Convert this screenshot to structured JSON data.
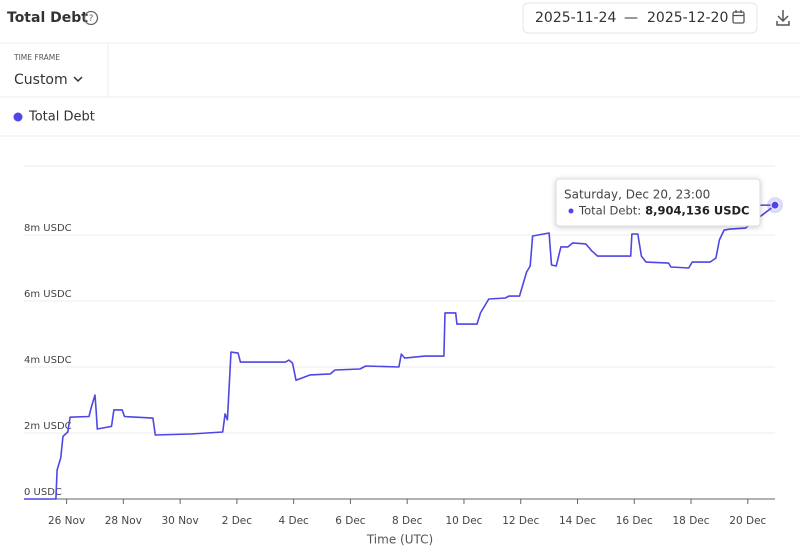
{
  "header": {
    "title": "Total Debt",
    "start_date": "2025-11-24",
    "separator": "—",
    "end_date": "2025-12-20"
  },
  "timeframe": {
    "label": "TIME FRAME",
    "value": "Custom"
  },
  "chart_data": {
    "type": "line",
    "x_label": "Time (UTC)",
    "xlim": [
      "2025-11-24T12:00",
      "2025-12-20T23:00"
    ],
    "xticks": [
      {
        "value": "2025-11-26T00:00",
        "label": "26 Nov"
      },
      {
        "value": "2025-11-28T00:00",
        "label": "28 Nov"
      },
      {
        "value": "2025-11-30T00:00",
        "label": "30 Nov"
      },
      {
        "value": "2025-12-02T00:00",
        "label": "2 Dec"
      },
      {
        "value": "2025-12-04T00:00",
        "label": "4 Dec"
      },
      {
        "value": "2025-12-06T00:00",
        "label": "6 Dec"
      },
      {
        "value": "2025-12-08T00:00",
        "label": "8 Dec"
      },
      {
        "value": "2025-12-10T00:00",
        "label": "10 Dec"
      },
      {
        "value": "2025-12-12T00:00",
        "label": "12 Dec"
      },
      {
        "value": "2025-12-14T00:00",
        "label": "14 Dec"
      },
      {
        "value": "2025-12-16T00:00",
        "label": "16 Dec"
      },
      {
        "value": "2025-12-18T00:00",
        "label": "18 Dec"
      },
      {
        "value": "2025-12-20T00:00",
        "label": "20 Dec"
      }
    ],
    "ylim": [
      0,
      10000000
    ],
    "yticks": [
      {
        "value": 0,
        "label": "0 USDC"
      },
      {
        "value": 2000000,
        "label": "2m USDC"
      },
      {
        "value": 4000000,
        "label": "4m USDC"
      },
      {
        "value": 6000000,
        "label": "6m USDC"
      },
      {
        "value": 8000000,
        "label": "8m USDC"
      }
    ],
    "grid": true,
    "x": [
      "2025-11-24T12:00",
      "2025-11-25T15:00",
      "2025-11-25T16:00",
      "2025-11-25T19:00",
      "2025-11-25T21:00",
      "2025-11-26T01:00",
      "2025-11-26T03:00",
      "2025-11-26T19:00",
      "2025-11-26T21:00",
      "2025-11-27T00:00",
      "2025-11-27T01:00",
      "2025-11-27T02:00",
      "2025-11-27T14:00",
      "2025-11-27T16:00",
      "2025-11-27T23:00",
      "2025-11-28T01:00",
      "2025-11-29T01:00",
      "2025-11-29T03:00",
      "2025-11-30T09:00",
      "2025-12-01T12:00",
      "2025-12-01T14:00",
      "2025-12-01T16:00",
      "2025-12-01T19:00",
      "2025-12-02T01:00",
      "2025-12-02T03:00",
      "2025-12-03T17:00",
      "2025-12-03T20:00",
      "2025-12-03T23:00",
      "2025-12-04T02:00",
      "2025-12-04T14:00",
      "2025-12-05T07:00",
      "2025-12-05T11:00",
      "2025-12-06T08:00",
      "2025-12-06T13:00",
      "2025-12-07T17:00",
      "2025-12-07T19:00",
      "2025-12-07T22:00",
      "2025-12-08T15:00",
      "2025-12-09T07:00",
      "2025-12-09T08:00",
      "2025-12-09T17:00",
      "2025-12-09T18:00",
      "2025-12-10T11:00",
      "2025-12-10T14:00",
      "2025-12-10T21:00",
      "2025-12-11T11:00",
      "2025-12-11T14:00",
      "2025-12-11T23:00",
      "2025-12-12T05:00",
      "2025-12-12T08:00",
      "2025-12-12T10:00",
      "2025-12-13T00:00",
      "2025-12-13T02:00",
      "2025-12-13T06:00",
      "2025-12-13T10:00",
      "2025-12-13T16:00",
      "2025-12-13T20:00",
      "2025-12-14T07:00",
      "2025-12-14T12:00",
      "2025-12-14T17:00",
      "2025-12-15T09:00",
      "2025-12-15T21:00",
      "2025-12-15T22:00",
      "2025-12-16T03:00",
      "2025-12-16T06:00",
      "2025-12-16T10:00",
      "2025-12-17T05:00",
      "2025-12-17T07:00",
      "2025-12-17T22:00",
      "2025-12-18T01:00",
      "2025-12-18T16:00",
      "2025-12-18T21:00",
      "2025-12-19T00:00",
      "2025-12-19T04:00",
      "2025-12-19T09:00",
      "2025-12-19T22:00",
      "2025-12-20T00:00",
      "2025-12-20T23:00"
    ],
    "series": [
      {
        "name": "Total Debt",
        "color": "#4f46e5",
        "values": [
          0,
          0,
          880000,
          1240000,
          1900000,
          2030000,
          2480000,
          2500000,
          2790000,
          3150000,
          2700000,
          2120000,
          2200000,
          2700000,
          2700000,
          2500000,
          2450000,
          1940000,
          1970000,
          2030000,
          2580000,
          2400000,
          4450000,
          4420000,
          4150000,
          4150000,
          4210000,
          4120000,
          3600000,
          3760000,
          3790000,
          3910000,
          3940000,
          4030000,
          4000000,
          4390000,
          4270000,
          4330000,
          4330000,
          5640000,
          5640000,
          5300000,
          5300000,
          5640000,
          6060000,
          6090000,
          6150000,
          6150000,
          6880000,
          7060000,
          7970000,
          8060000,
          7090000,
          7060000,
          7640000,
          7640000,
          7760000,
          7730000,
          7520000,
          7360000,
          7360000,
          7360000,
          8030000,
          8030000,
          7360000,
          7180000,
          7150000,
          7030000,
          7000000,
          7180000,
          7180000,
          7300000,
          7850000,
          8150000,
          8180000,
          8210000,
          8270000,
          8904136
        ]
      }
    ],
    "tooltip": {
      "title": "Saturday, Dec 20, 23:00",
      "label": "Total Debt:",
      "value_label": "8,904,136 USDC"
    }
  }
}
